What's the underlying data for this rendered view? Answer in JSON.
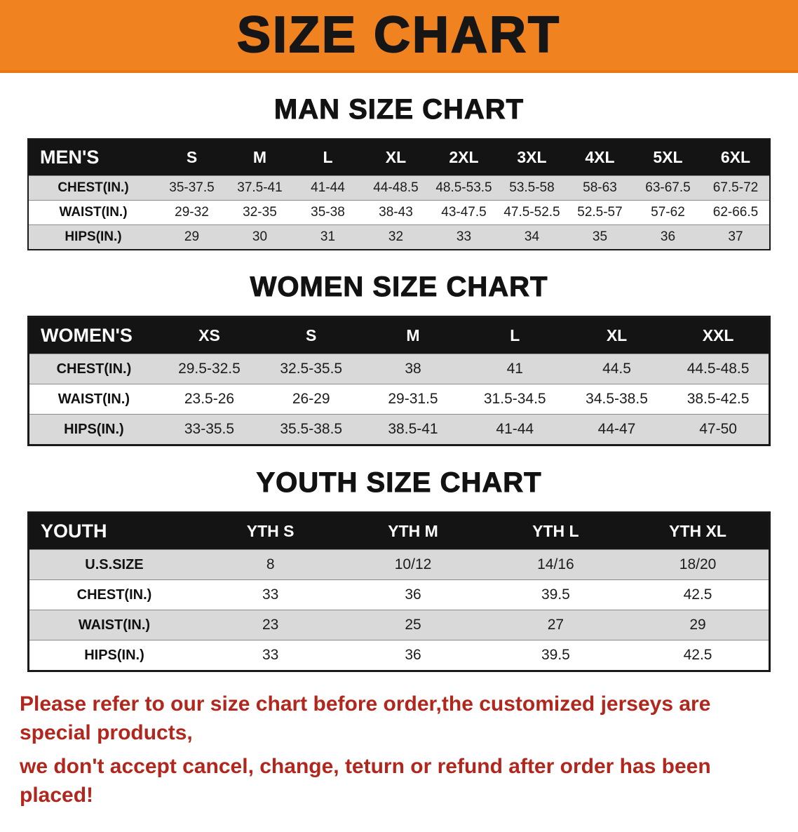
{
  "banner": {
    "title": "SIZE CHART",
    "bg_color": "#f0821f"
  },
  "sections": [
    {
      "id": "man-size-chart",
      "title": "MAN SIZE CHART",
      "table": {
        "header": [
          "MEN'S",
          "S",
          "M",
          "L",
          "XL",
          "2XL",
          "3XL",
          "4XL",
          "5XL",
          "6XL"
        ],
        "rows": [
          {
            "label": "CHEST(IN.)",
            "values": [
              "35-37.5",
              "37.5-41",
              "41-44",
              "44-48.5",
              "48.5-53.5",
              "53.5-58",
              "58-63",
              "63-67.5",
              "67.5-72"
            ]
          },
          {
            "label": "WAIST(IN.)",
            "values": [
              "29-32",
              "32-35",
              "35-38",
              "38-43",
              "43-47.5",
              "47.5-52.5",
              "52.5-57",
              "57-62",
              "62-66.5"
            ]
          },
          {
            "label": "HIPS(IN.)",
            "values": [
              "29",
              "30",
              "31",
              "32",
              "33",
              "34",
              "35",
              "36",
              "37"
            ]
          }
        ]
      }
    },
    {
      "id": "women-size-chart",
      "title": "WOMEN SIZE CHART",
      "table": {
        "header": [
          "WOMEN'S",
          "XS",
          "S",
          "M",
          "L",
          "XL",
          "XXL"
        ],
        "rows": [
          {
            "label": "CHEST(IN.)",
            "values": [
              "29.5-32.5",
              "32.5-35.5",
              "38",
              "41",
              "44.5",
              "44.5-48.5"
            ]
          },
          {
            "label": "WAIST(IN.)",
            "values": [
              "23.5-26",
              "26-29",
              "29-31.5",
              "31.5-34.5",
              "34.5-38.5",
              "38.5-42.5"
            ]
          },
          {
            "label": "HIPS(IN.)",
            "values": [
              "33-35.5",
              "35.5-38.5",
              "38.5-41",
              "41-44",
              "44-47",
              "47-50"
            ]
          }
        ]
      }
    },
    {
      "id": "youth-size-chart",
      "title": "YOUTH SIZE CHART",
      "table": {
        "header": [
          "YOUTH",
          "YTH S",
          "YTH M",
          "YTH L",
          "YTH XL"
        ],
        "rows": [
          {
            "label": "U.S.SIZE",
            "values": [
              "8",
              "10/12",
              "14/16",
              "18/20"
            ]
          },
          {
            "label": "CHEST(IN.)",
            "values": [
              "33",
              "36",
              "39.5",
              "42.5"
            ]
          },
          {
            "label": "WAIST(IN.)",
            "values": [
              "23",
              "25",
              "27",
              "29"
            ]
          },
          {
            "label": "HIPS(IN.)",
            "values": [
              "33",
              "36",
              "39.5",
              "42.5"
            ]
          }
        ]
      }
    }
  ],
  "footer": {
    "text_color": "#b2271d",
    "lines": [
      "Please refer to our size chart before order,the customized jerseys are special products,",
      "we don't accept cancel, change, teturn or refund after order has been placed!"
    ]
  }
}
